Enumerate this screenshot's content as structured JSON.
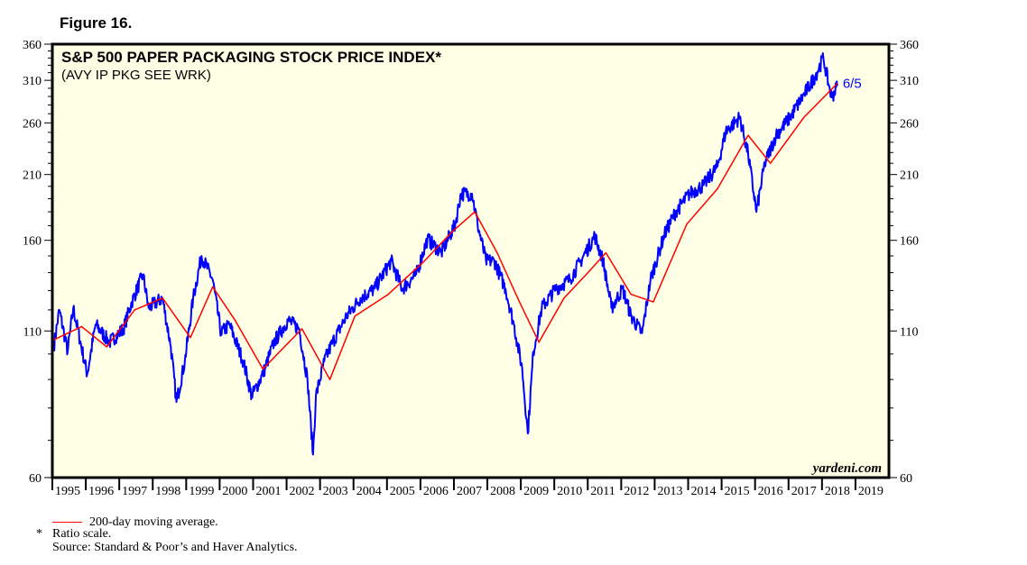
{
  "figure_label": "Figure 16.",
  "chart_data": {
    "type": "line",
    "title": "S&P 500 PAPER PACKAGING STOCK PRICE INDEX*",
    "subtitle": "(AVY IP PKG SEE WRK)",
    "y_scale": "log",
    "ylim": [
      60,
      360
    ],
    "y_ticks": [
      60,
      110,
      160,
      210,
      260,
      310,
      360
    ],
    "xlim": [
      "1995-01",
      "2019-12"
    ],
    "x_ticks": [
      "1995",
      "1996",
      "1997",
      "1998",
      "1999",
      "2000",
      "2001",
      "2002",
      "2003",
      "2004",
      "2005",
      "2006",
      "2007",
      "2008",
      "2009",
      "2010",
      "2011",
      "2012",
      "2013",
      "2014",
      "2015",
      "2016",
      "2017",
      "2018",
      "2019"
    ],
    "background": "#FFFFE6",
    "end_label": "6/5",
    "watermark": "yardeni.com",
    "series": [
      {
        "color": "#0000FF",
        "points": [
          [
            "1995-01",
            103
          ],
          [
            "1995-03",
            120
          ],
          [
            "1995-06",
            101
          ],
          [
            "1995-08",
            121
          ],
          [
            "1996-01",
            92
          ],
          [
            "1996-04",
            113
          ],
          [
            "1996-09",
            105
          ],
          [
            "1997-02",
            111
          ],
          [
            "1997-05",
            124
          ],
          [
            "1997-09",
            139
          ],
          [
            "1997-11",
            121
          ],
          [
            "1998-04",
            126
          ],
          [
            "1998-07",
            103
          ],
          [
            "1998-09",
            82
          ],
          [
            "1998-12",
            97
          ],
          [
            "1999-03",
            126
          ],
          [
            "1999-06",
            150
          ],
          [
            "1999-10",
            136
          ],
          [
            "2000-01",
            109
          ],
          [
            "2000-04",
            113
          ],
          [
            "2000-09",
            97
          ],
          [
            "2000-12",
            84
          ],
          [
            "2001-04",
            92
          ],
          [
            "2001-08",
            105
          ],
          [
            "2002-01",
            115
          ],
          [
            "2002-05",
            111
          ],
          [
            "2002-08",
            90
          ],
          [
            "2002-10",
            66
          ],
          [
            "2002-11",
            84
          ],
          [
            "2003-02",
            97
          ],
          [
            "2003-05",
            105
          ],
          [
            "2003-10",
            117
          ],
          [
            "2004-03",
            126
          ],
          [
            "2004-08",
            131
          ],
          [
            "2005-02",
            147
          ],
          [
            "2005-06",
            131
          ],
          [
            "2005-11",
            139
          ],
          [
            "2006-03",
            161
          ],
          [
            "2006-08",
            152
          ],
          [
            "2007-01",
            171
          ],
          [
            "2007-03",
            194
          ],
          [
            "2007-07",
            194
          ],
          [
            "2007-09",
            171
          ],
          [
            "2007-12",
            147
          ],
          [
            "2008-03",
            147
          ],
          [
            "2008-07",
            131
          ],
          [
            "2008-10",
            113
          ],
          [
            "2009-01",
            94
          ],
          [
            "2009-03",
            72
          ],
          [
            "2009-05",
            101
          ],
          [
            "2009-08",
            121
          ],
          [
            "2010-01",
            131
          ],
          [
            "2010-06",
            136
          ],
          [
            "2010-10",
            147
          ],
          [
            "2011-03",
            163
          ],
          [
            "2011-06",
            147
          ],
          [
            "2011-09",
            121
          ],
          [
            "2012-01",
            131
          ],
          [
            "2012-04",
            117
          ],
          [
            "2012-08",
            109
          ],
          [
            "2012-11",
            136
          ],
          [
            "2013-04",
            164
          ],
          [
            "2013-08",
            180
          ],
          [
            "2014-01",
            194
          ],
          [
            "2014-06",
            201
          ],
          [
            "2014-11",
            217
          ],
          [
            "2015-02",
            251
          ],
          [
            "2015-07",
            266
          ],
          [
            "2015-10",
            229
          ],
          [
            "2016-01",
            180
          ],
          [
            "2016-04",
            220
          ],
          [
            "2016-08",
            247
          ],
          [
            "2017-01",
            266
          ],
          [
            "2017-06",
            292
          ],
          [
            "2017-10",
            315
          ],
          [
            "2018-01",
            340
          ],
          [
            "2018-03",
            303
          ],
          [
            "2018-04",
            289
          ],
          [
            "2018-06",
            303
          ]
        ]
      },
      {
        "name": "200-day moving average.",
        "color": "#FF0000",
        "points": [
          [
            "1995-01",
            106
          ],
          [
            "1995-11",
            112
          ],
          [
            "1996-08",
            103
          ],
          [
            "1997-06",
            120
          ],
          [
            "1998-04",
            126
          ],
          [
            "1999-02",
            107
          ],
          [
            "1999-10",
            132
          ],
          [
            "2000-06",
            115
          ],
          [
            "2001-04",
            94
          ],
          [
            "2002-06",
            111
          ],
          [
            "2003-04",
            90
          ],
          [
            "2004-01",
            117
          ],
          [
            "2005-01",
            128
          ],
          [
            "2006-02",
            147
          ],
          [
            "2006-12",
            166
          ],
          [
            "2007-08",
            180
          ],
          [
            "2008-04",
            152
          ],
          [
            "2008-12",
            124
          ],
          [
            "2009-07",
            105
          ],
          [
            "2010-04",
            126
          ],
          [
            "2010-12",
            139
          ],
          [
            "2011-07",
            152
          ],
          [
            "2012-04",
            128
          ],
          [
            "2012-12",
            124
          ],
          [
            "2013-12",
            171
          ],
          [
            "2014-11",
            198
          ],
          [
            "2015-10",
            247
          ],
          [
            "2016-06",
            220
          ],
          [
            "2017-06",
            266
          ],
          [
            "2018-06",
            306
          ]
        ]
      }
    ]
  },
  "footnotes": {
    "legend_ma": "200-day moving average.",
    "asterisk": "*",
    "ratio": "Ratio scale.",
    "source": "Source: Standard & Poor’s and Haver Analytics."
  }
}
